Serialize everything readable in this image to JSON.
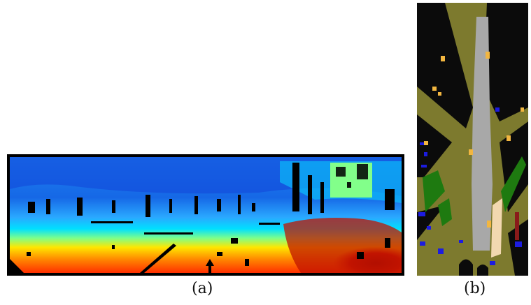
{
  "figure": {
    "panels": [
      {
        "id": "a",
        "caption": "(a)",
        "content": "depth-image",
        "colormap": [
          "#0a2fd8",
          "#1e8fff",
          "#00e4ff",
          "#7dff8a",
          "#ffe600",
          "#ff7a00",
          "#d81a00",
          "#8a0000"
        ],
        "background": "#000000"
      },
      {
        "id": "b",
        "caption": "(b)",
        "content": "semantic-bev-map",
        "palette": {
          "unknown": "#0b0b0b",
          "terrain": "#7d7a2e",
          "road": "#a8a8a8",
          "vegetation": "#1e7a10",
          "sidewalk": "#f2d8b0",
          "object": "#1c1ce0",
          "pole": "#f2b640",
          "wall": "#8a1a1a"
        }
      }
    ]
  }
}
